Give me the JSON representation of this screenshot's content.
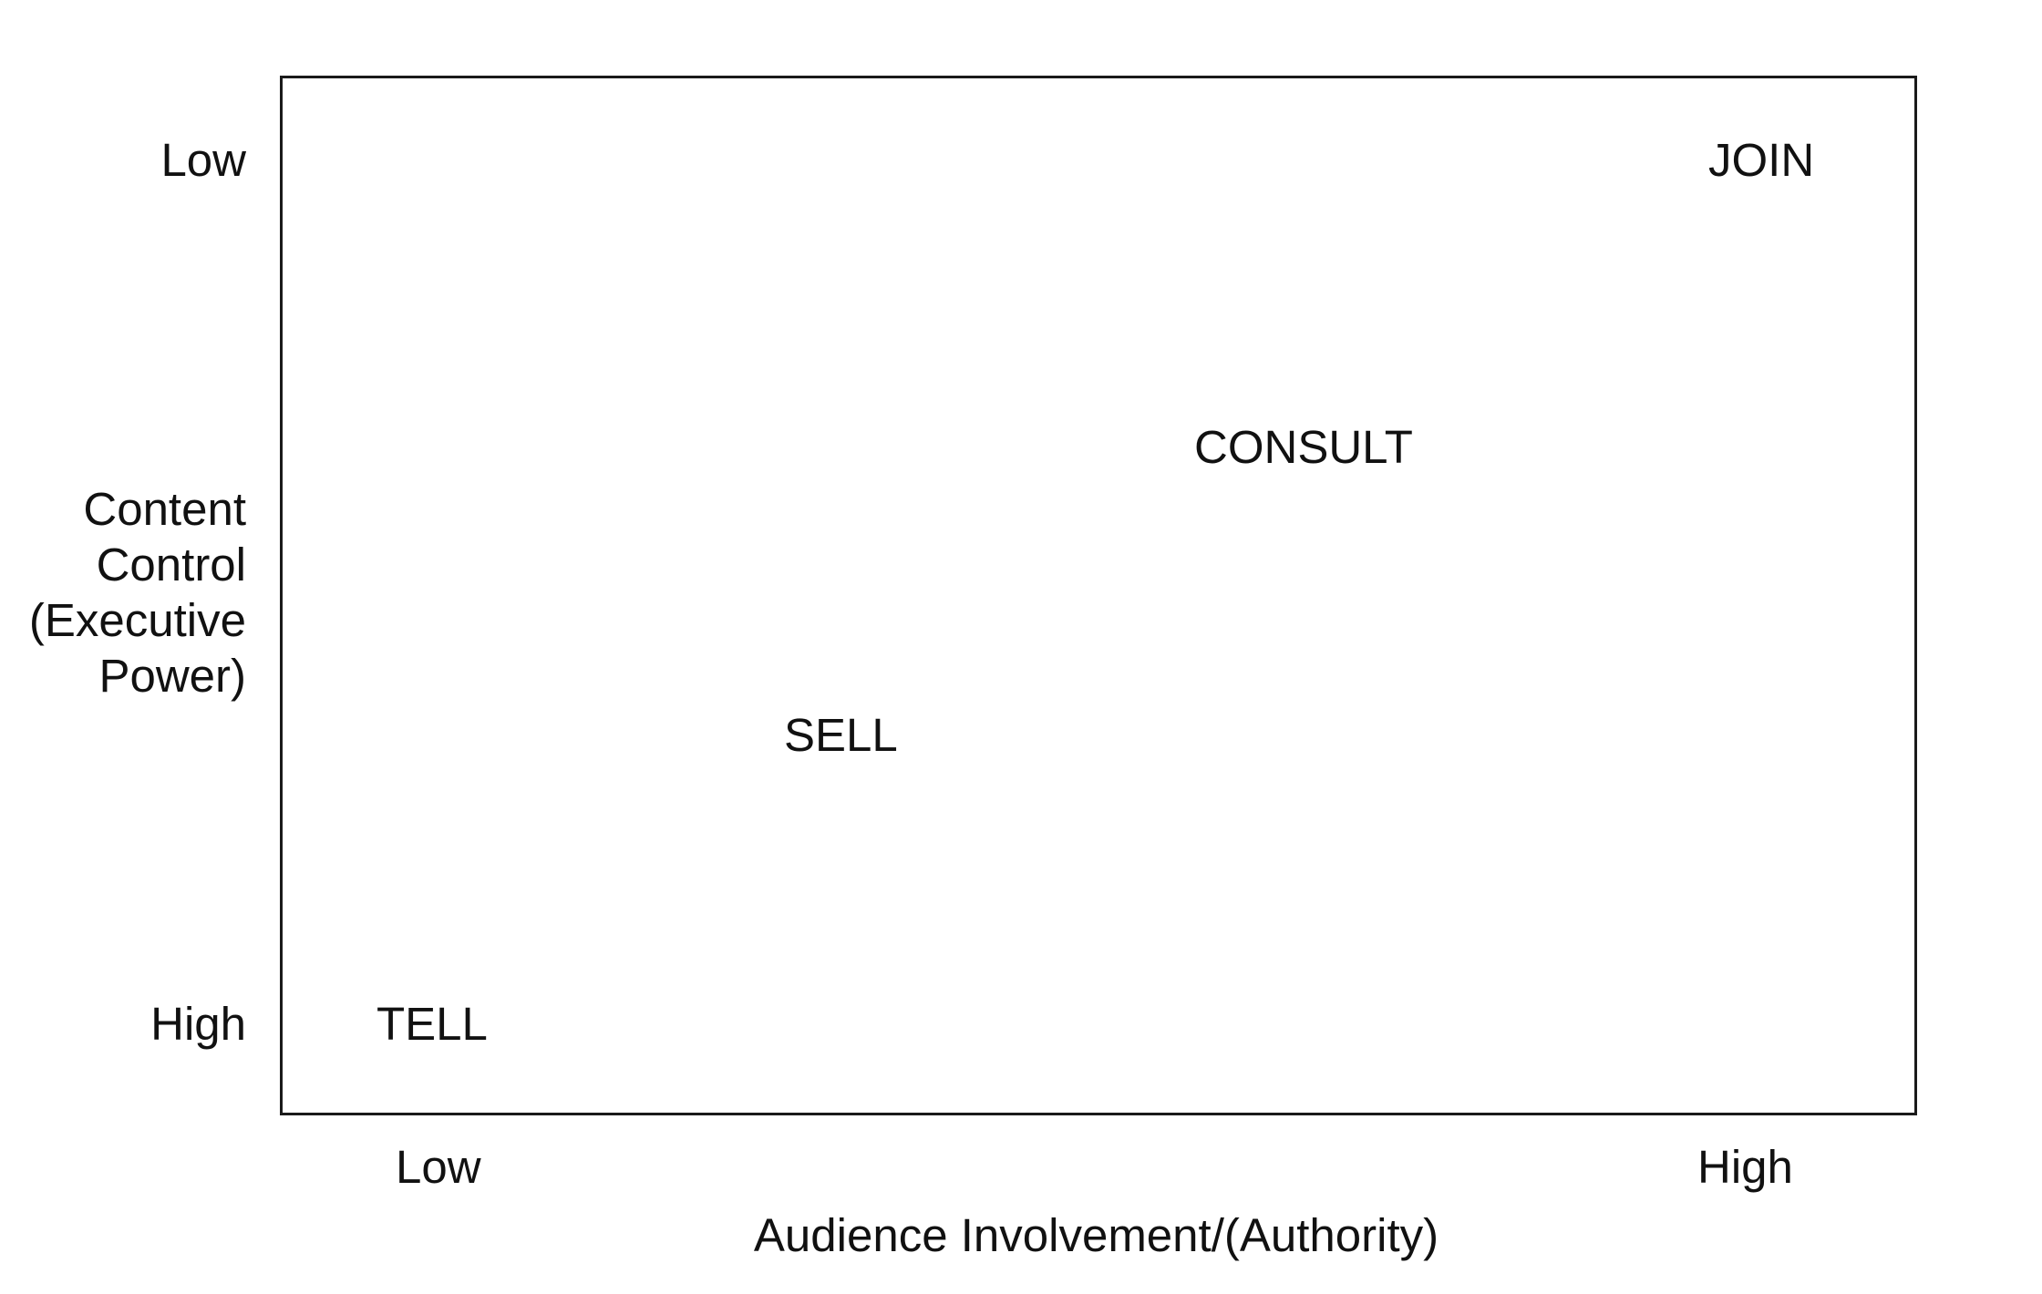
{
  "diagram": {
    "y_axis": {
      "title": "Content\nControl\n(Executive\nPower)",
      "top_label": "Low",
      "bottom_label": "High"
    },
    "x_axis": {
      "title": "Audience Involvement/(Authority)",
      "left_label": "Low",
      "right_label": "High"
    },
    "items": [
      {
        "label": "TELL"
      },
      {
        "label": "SELL"
      },
      {
        "label": "CONSULT"
      },
      {
        "label": "JOIN"
      }
    ]
  }
}
